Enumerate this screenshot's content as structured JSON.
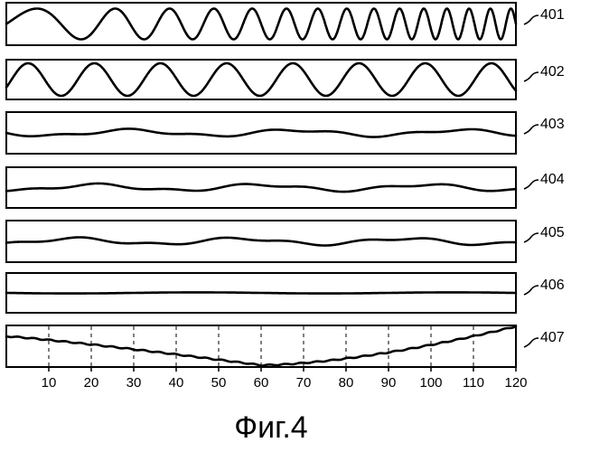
{
  "figure": {
    "caption": "Фиг.4",
    "panels": [
      {
        "ref": "401",
        "signal": "high-frequency-oscillation"
      },
      {
        "ref": "402",
        "signal": "sinusoid"
      },
      {
        "ref": "403",
        "signal": "low-amplitude-waveform"
      },
      {
        "ref": "404",
        "signal": "low-amplitude-waveform"
      },
      {
        "ref": "405",
        "signal": "low-amplitude-waveform"
      },
      {
        "ref": "406",
        "signal": "near-flat-line"
      },
      {
        "ref": "407",
        "signal": "bowl-shaped-curve"
      }
    ],
    "x_axis": {
      "ticks": [
        "10",
        "20",
        "30",
        "40",
        "50",
        "60",
        "70",
        "80",
        "90",
        "100",
        "110",
        "120"
      ],
      "range": [
        0,
        120
      ]
    }
  }
}
